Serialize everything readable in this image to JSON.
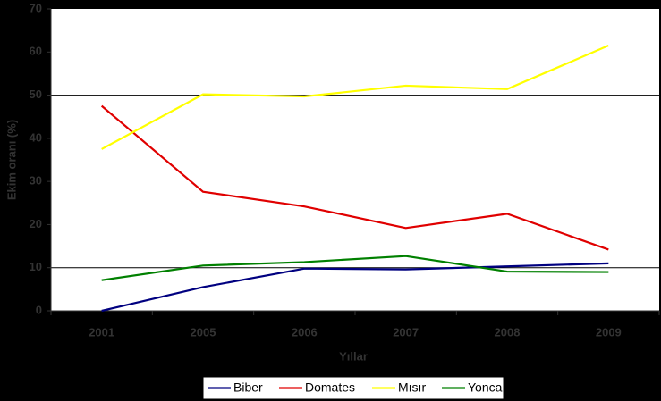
{
  "chart_data": {
    "type": "line",
    "x_label": "Yıllar",
    "y_label": "Ekim oranı (%)",
    "categories": [
      "2001",
      "2005",
      "2006",
      "2007",
      "2008",
      "2009"
    ],
    "series": [
      {
        "name": "Biber",
        "color": "#000080",
        "values": [
          0,
          5.5,
          9.8,
          9.6,
          10.3,
          11
        ]
      },
      {
        "name": "Domates",
        "color": "#e00000",
        "values": [
          47.5,
          27.6,
          24.2,
          19.2,
          22.5,
          14.2
        ]
      },
      {
        "name": "Mısır",
        "color": "#ffff00",
        "values": [
          37.5,
          50.2,
          49.7,
          52.2,
          51.4,
          61.5
        ]
      },
      {
        "name": "Yonca",
        "color": "#008000",
        "values": [
          7.1,
          10.5,
          11.3,
          12.7,
          9.1,
          9.0
        ]
      }
    ],
    "ylim": [
      0,
      70
    ],
    "yticks": [
      0,
      10,
      20,
      30,
      40,
      50,
      60,
      70
    ],
    "gridlines": [
      10,
      50
    ],
    "legend": "bottom"
  }
}
